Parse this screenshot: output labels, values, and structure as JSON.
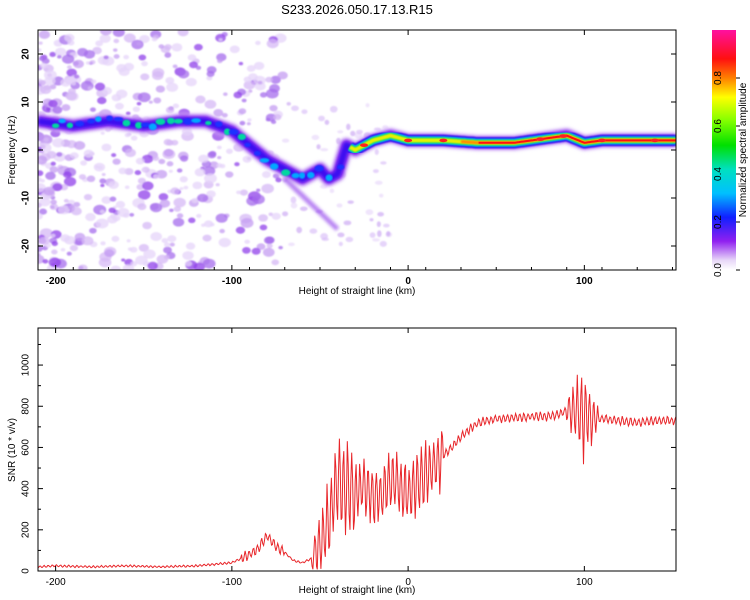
{
  "title": "S233.2026.050.17.13.R15",
  "chart_data": [
    {
      "type": "heatmap",
      "name": "spectrogram",
      "xlabel": "Height of straight line (km)",
      "ylabel": "Frequency (Hz)",
      "xlim": [
        -210,
        152
      ],
      "ylim": [
        -25,
        25
      ],
      "xticks": [
        -200,
        -100,
        0,
        100
      ],
      "yticks": [
        -20,
        -10,
        0,
        10,
        20
      ],
      "colorbar": {
        "label": "Normalized spectral amplitude",
        "range": [
          0,
          1
        ],
        "ticks": [
          "0.0",
          "0.2",
          "0.4",
          "0.6",
          "0.8"
        ]
      },
      "ridge": {
        "x": [
          -210,
          -190,
          -170,
          -150,
          -130,
          -115,
          -100,
          -90,
          -80,
          -70,
          -60,
          -50,
          -45,
          -40,
          -35,
          -30,
          -20,
          -10,
          0,
          10,
          20,
          40,
          60,
          80,
          90,
          100,
          110,
          120,
          152
        ],
        "frequency": [
          6,
          5,
          6,
          5,
          6,
          6,
          4,
          1,
          -2,
          -4,
          -6,
          -4,
          -6,
          -5,
          1,
          0,
          2,
          3,
          2,
          2,
          2,
          1.5,
          1.5,
          2.5,
          3,
          1.5,
          2,
          2,
          2
        ]
      }
    },
    {
      "type": "line",
      "name": "snr",
      "xlabel": "Height of straight line (km)",
      "ylabel": "SNR (10 * v/v)",
      "xlim": [
        -210,
        152
      ],
      "ylim": [
        0,
        1180
      ],
      "xticks": [
        -200,
        -100,
        0,
        100
      ],
      "yticks": [
        0,
        200,
        400,
        600,
        800,
        1000
      ],
      "series": [
        {
          "name": "SNR",
          "color": "#e8262a",
          "x": [
            -210,
            -200,
            -180,
            -160,
            -140,
            -120,
            -100,
            -90,
            -85,
            -80,
            -75,
            -70,
            -65,
            -60,
            -55,
            -50,
            -45,
            -40,
            -35,
            -30,
            -25,
            -20,
            -15,
            -10,
            -5,
            0,
            5,
            10,
            15,
            20,
            25,
            30,
            35,
            40,
            50,
            60,
            70,
            80,
            85,
            90,
            95,
            100,
            105,
            110,
            120,
            130,
            140,
            152
          ],
          "values": [
            20,
            25,
            20,
            25,
            20,
            25,
            40,
            80,
            110,
            170,
            120,
            90,
            50,
            40,
            60,
            120,
            250,
            450,
            400,
            380,
            420,
            380,
            360,
            440,
            420,
            360,
            420,
            480,
            520,
            560,
            600,
            650,
            690,
            720,
            740,
            745,
            750,
            750,
            760,
            780,
            770,
            760,
            750,
            740,
            730,
            720,
            730,
            730
          ]
        }
      ]
    }
  ]
}
